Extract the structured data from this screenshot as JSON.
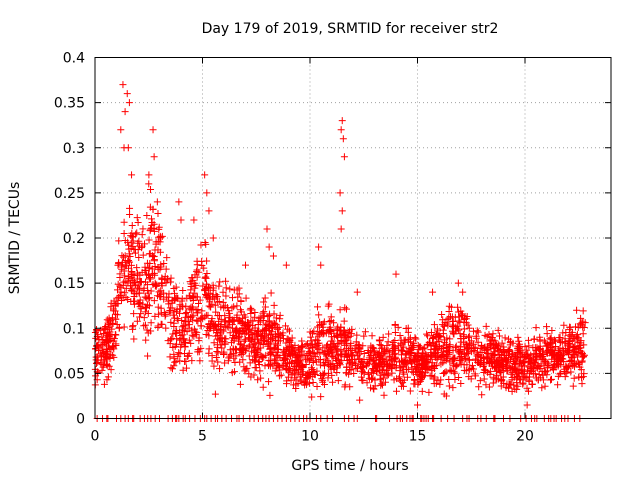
{
  "chart_data": {
    "type": "scatter",
    "title": "Day 179 of 2019, SRMTID for receiver str2",
    "xlabel": "GPS time / hours",
    "ylabel": "SRMTID / TECUs",
    "xlim": [
      0,
      24
    ],
    "ylim": [
      0,
      0.4
    ],
    "xticks": [
      0,
      5,
      10,
      15,
      20
    ],
    "yticks": [
      0,
      0.05,
      0.1,
      0.15,
      0.2,
      0.25,
      0.3,
      0.35,
      0.4
    ],
    "grid": true,
    "marker": "+",
    "color": "#ff0000",
    "profile": {
      "x": [
        0.0,
        0.3,
        0.6,
        0.9,
        1.1,
        1.3,
        1.5,
        1.7,
        1.9,
        2.1,
        2.3,
        2.5,
        2.7,
        2.9,
        3.1,
        3.3,
        3.5,
        3.7,
        3.9,
        4.1,
        4.3,
        4.5,
        4.7,
        4.9,
        5.1,
        5.3,
        5.5,
        5.8,
        6.0,
        6.3,
        6.6,
        7.0,
        7.5,
        8.0,
        8.5,
        9.0,
        9.3,
        9.6,
        10.0,
        10.4,
        10.8,
        11.2,
        11.5,
        11.8,
        12.2,
        12.6,
        13.0,
        13.5,
        14.0,
        14.5,
        15.0,
        15.5,
        16.0,
        16.5,
        17.0,
        17.5,
        18.0,
        18.5,
        19.0,
        19.5,
        20.0,
        20.5,
        21.0,
        21.5,
        22.0,
        22.5,
        22.8
      ],
      "mean": [
        0.07,
        0.072,
        0.075,
        0.1,
        0.13,
        0.16,
        0.17,
        0.16,
        0.17,
        0.15,
        0.14,
        0.16,
        0.18,
        0.17,
        0.15,
        0.14,
        0.12,
        0.11,
        0.1,
        0.09,
        0.1,
        0.12,
        0.13,
        0.13,
        0.14,
        0.12,
        0.11,
        0.1,
        0.1,
        0.1,
        0.095,
        0.09,
        0.085,
        0.09,
        0.085,
        0.07,
        0.06,
        0.06,
        0.065,
        0.075,
        0.08,
        0.075,
        0.09,
        0.075,
        0.065,
        0.06,
        0.06,
        0.065,
        0.07,
        0.065,
        0.06,
        0.065,
        0.075,
        0.08,
        0.085,
        0.075,
        0.065,
        0.065,
        0.065,
        0.06,
        0.06,
        0.065,
        0.07,
        0.07,
        0.07,
        0.075,
        0.08
      ],
      "spread": [
        0.02,
        0.02,
        0.02,
        0.03,
        0.04,
        0.05,
        0.05,
        0.05,
        0.05,
        0.045,
        0.045,
        0.05,
        0.05,
        0.05,
        0.045,
        0.045,
        0.04,
        0.035,
        0.03,
        0.03,
        0.03,
        0.035,
        0.04,
        0.04,
        0.045,
        0.04,
        0.035,
        0.03,
        0.03,
        0.03,
        0.03,
        0.028,
        0.027,
        0.03,
        0.027,
        0.022,
        0.018,
        0.018,
        0.02,
        0.025,
        0.028,
        0.025,
        0.03,
        0.025,
        0.02,
        0.018,
        0.018,
        0.02,
        0.022,
        0.02,
        0.018,
        0.02,
        0.025,
        0.028,
        0.028,
        0.025,
        0.02,
        0.02,
        0.02,
        0.018,
        0.018,
        0.02,
        0.02,
        0.02,
        0.02,
        0.022,
        0.025
      ]
    },
    "spikes": [
      {
        "x": 1.3,
        "y": 0.37
      },
      {
        "x": 1.4,
        "y": 0.34
      },
      {
        "x": 1.5,
        "y": 0.36
      },
      {
        "x": 1.6,
        "y": 0.35
      },
      {
        "x": 1.2,
        "y": 0.32
      },
      {
        "x": 1.35,
        "y": 0.3
      },
      {
        "x": 1.55,
        "y": 0.3
      },
      {
        "x": 1.7,
        "y": 0.27
      },
      {
        "x": 2.5,
        "y": 0.26
      },
      {
        "x": 2.7,
        "y": 0.32
      },
      {
        "x": 2.75,
        "y": 0.29
      },
      {
        "x": 2.9,
        "y": 0.24
      },
      {
        "x": 3.9,
        "y": 0.24
      },
      {
        "x": 4.0,
        "y": 0.22
      },
      {
        "x": 4.6,
        "y": 0.22
      },
      {
        "x": 5.1,
        "y": 0.27
      },
      {
        "x": 5.2,
        "y": 0.25
      },
      {
        "x": 5.3,
        "y": 0.23
      },
      {
        "x": 5.5,
        "y": 0.2
      },
      {
        "x": 7.0,
        "y": 0.17
      },
      {
        "x": 8.0,
        "y": 0.21
      },
      {
        "x": 8.1,
        "y": 0.19
      },
      {
        "x": 8.3,
        "y": 0.18
      },
      {
        "x": 8.9,
        "y": 0.17
      },
      {
        "x": 10.4,
        "y": 0.19
      },
      {
        "x": 10.5,
        "y": 0.17
      },
      {
        "x": 11.4,
        "y": 0.25
      },
      {
        "x": 11.45,
        "y": 0.32
      },
      {
        "x": 11.5,
        "y": 0.33
      },
      {
        "x": 11.55,
        "y": 0.31
      },
      {
        "x": 11.6,
        "y": 0.29
      },
      {
        "x": 11.5,
        "y": 0.23
      },
      {
        "x": 11.45,
        "y": 0.21
      },
      {
        "x": 12.2,
        "y": 0.14
      },
      {
        "x": 14.0,
        "y": 0.16
      },
      {
        "x": 15.7,
        "y": 0.14
      },
      {
        "x": 16.9,
        "y": 0.15
      },
      {
        "x": 17.1,
        "y": 0.14
      },
      {
        "x": 22.4,
        "y": 0.12
      },
      {
        "x": 15.0,
        "y": 0.015
      },
      {
        "x": 20.1,
        "y": 0.015
      },
      {
        "x": 19.4,
        "y": 0.03
      },
      {
        "x": 5.6,
        "y": 0.027
      }
    ],
    "zero_points_x": [
      0.1,
      0.35,
      0.55,
      0.6,
      1.0,
      1.2,
      1.4,
      1.55,
      1.75,
      1.8,
      2.1,
      2.3,
      2.45,
      2.6,
      2.8,
      3.0,
      3.4,
      3.6,
      3.75,
      3.8,
      3.9,
      4.1,
      4.2,
      4.4,
      4.65,
      4.9,
      5.1,
      5.2,
      5.4,
      5.6,
      5.7,
      5.9,
      6.1,
      6.35,
      6.6,
      6.7,
      6.9,
      7.2,
      7.4,
      7.6,
      7.8,
      7.95,
      8.1,
      8.3,
      8.5,
      8.7,
      8.9,
      9.1,
      9.3,
      9.5,
      9.7,
      9.85,
      10.0,
      10.3,
      10.5,
      10.8,
      11.05,
      11.6,
      11.8,
      12.05,
      12.2,
      13.05,
      13.1,
      13.7,
      14.05,
      14.2,
      14.3,
      14.5,
      14.65,
      14.75,
      14.8,
      15.15,
      15.2,
      15.3,
      15.4,
      15.5,
      15.7,
      15.75,
      16.1,
      16.4,
      16.7,
      17.1,
      17.3,
      17.4,
      17.8,
      17.95,
      18.2,
      18.55,
      18.6,
      19.0,
      19.3,
      19.8,
      20.05,
      20.3,
      20.45,
      20.55,
      20.9,
      21.1,
      21.2,
      21.35,
      21.45,
      21.7,
      21.85,
      22.0,
      22.3,
      22.55
    ]
  }
}
